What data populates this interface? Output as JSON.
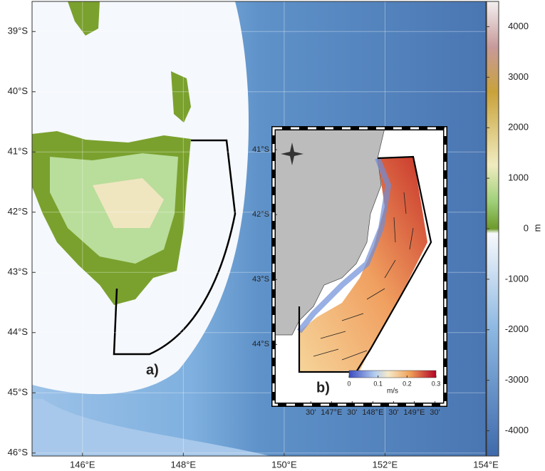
{
  "main_map": {
    "lon_lim": [
      145,
      154
    ],
    "lat_lim": [
      -46.05,
      -38.5
    ],
    "lon_ticks": [
      {
        "value": 146,
        "label": "146°E"
      },
      {
        "value": 148,
        "label": "148°E"
      },
      {
        "value": 150,
        "label": "150°E"
      },
      {
        "value": 152,
        "label": "152°E"
      },
      {
        "value": 154,
        "label": "154°E"
      }
    ],
    "lat_ticks": [
      {
        "value": -39,
        "label": "39°S"
      },
      {
        "value": -40,
        "label": "40°S"
      },
      {
        "value": -41,
        "label": "41°S"
      },
      {
        "value": -42,
        "label": "42°S"
      },
      {
        "value": -43,
        "label": "43°S"
      },
      {
        "value": -44,
        "label": "44°S"
      },
      {
        "value": -45,
        "label": "45°S"
      },
      {
        "value": -46,
        "label": "46°S"
      }
    ],
    "panel_label": "a)"
  },
  "colorbar": {
    "lim": [
      -4500,
      4500
    ],
    "ticks": [
      4000,
      3000,
      2000,
      1000,
      0,
      -1000,
      -2000,
      -3000,
      -4000
    ],
    "label": "m"
  },
  "inset": {
    "lon_lim": [
      145.6,
      149.75
    ],
    "lat_lim": [
      -44.93,
      -40.67
    ],
    "lon_ticks": [
      {
        "value": 146.5,
        "label": "30'"
      },
      {
        "value": 147,
        "label": "147°E"
      },
      {
        "value": 147.5,
        "label": "30'"
      },
      {
        "value": 148,
        "label": "148°E"
      },
      {
        "value": 148.5,
        "label": "30'"
      },
      {
        "value": 149,
        "label": "149°E"
      },
      {
        "value": 149.5,
        "label": "30'"
      }
    ],
    "lat_ticks": [
      {
        "value": -41,
        "label": "41°S"
      },
      {
        "value": -42,
        "label": "42°S"
      },
      {
        "value": -43,
        "label": "43°S"
      },
      {
        "value": -44,
        "label": "44°S"
      }
    ],
    "panel_label": "b)",
    "colorbar": {
      "lim": [
        0,
        0.3
      ],
      "ticks": [
        0,
        0.1,
        0.2,
        0.3
      ],
      "label": "m/s"
    }
  }
}
